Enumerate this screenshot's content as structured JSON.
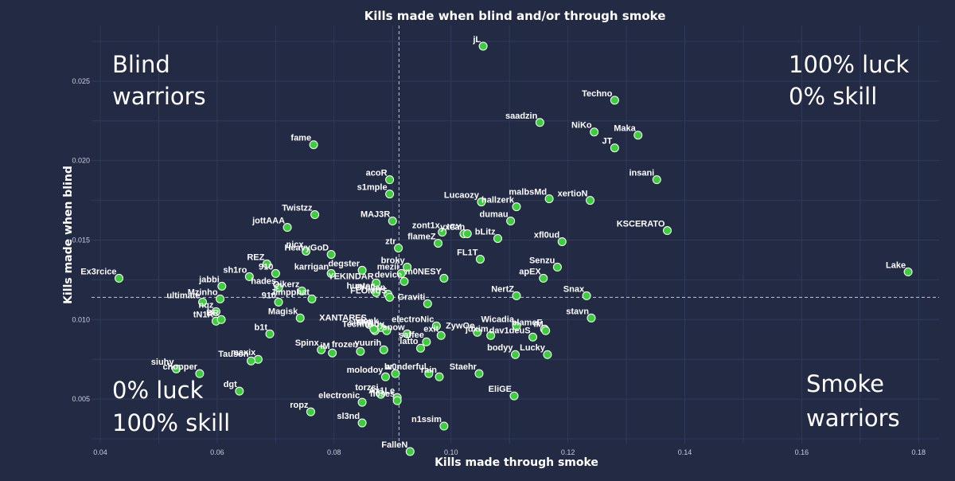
{
  "chart_data": {
    "type": "scatter",
    "title": "Kills made when blind and/or through smoke",
    "xlabel": "Kills made through smoke",
    "ylabel": "Kills made when blind",
    "xlim": [
      0.0385,
      0.1835
    ],
    "ylim": [
      0.0022,
      0.0285
    ],
    "x_ticks": [
      0.04,
      0.06,
      0.08,
      0.1,
      0.12,
      0.14,
      0.16,
      0.18
    ],
    "y_ticks": [
      0.005,
      0.01,
      0.015,
      0.02,
      0.025
    ],
    "x_tick_labels": [
      "0.04",
      "0.06",
      "0.08",
      "0.10",
      "0.12",
      "0.14",
      "0.16",
      "0.18"
    ],
    "y_tick_labels": [
      "0.005",
      "0.010",
      "0.015",
      "0.020",
      "0.025"
    ],
    "grid": true,
    "reference_lines": {
      "x": 0.0911,
      "y": 0.0114
    },
    "quadrant_labels": {
      "top_left": [
        "Blind",
        "warriors"
      ],
      "top_right": [
        "100% luck",
        "0% skill"
      ],
      "bottom_left": [
        "0% luck",
        "100% skill"
      ],
      "bottom_right": [
        "Smoke",
        "warriors"
      ]
    },
    "points": [
      {
        "label": "jL",
        "x": 0.1055,
        "y": 0.0272
      },
      {
        "label": "Techno",
        "x": 0.128,
        "y": 0.0238
      },
      {
        "label": "saadzin",
        "x": 0.1152,
        "y": 0.0224
      },
      {
        "label": "NiKo",
        "x": 0.1245,
        "y": 0.0218
      },
      {
        "label": "Maka",
        "x": 0.132,
        "y": 0.0216
      },
      {
        "label": "JT",
        "x": 0.128,
        "y": 0.0208
      },
      {
        "label": "fame",
        "x": 0.0765,
        "y": 0.021
      },
      {
        "label": "insani",
        "x": 0.1352,
        "y": 0.0188
      },
      {
        "label": "acoR",
        "x": 0.0895,
        "y": 0.0188
      },
      {
        "label": "s1mple",
        "x": 0.0895,
        "y": 0.0179
      },
      {
        "label": "xertioN",
        "x": 0.1238,
        "y": 0.0175
      },
      {
        "label": "malbsMd",
        "x": 0.1168,
        "y": 0.0176
      },
      {
        "label": "Lucaozy",
        "x": 0.1052,
        "y": 0.0174
      },
      {
        "label": "hallzerk",
        "x": 0.1112,
        "y": 0.0171
      },
      {
        "label": "Twistzz",
        "x": 0.0767,
        "y": 0.0166
      },
      {
        "label": "MAJ3R",
        "x": 0.09,
        "y": 0.0162
      },
      {
        "label": "dumau",
        "x": 0.1102,
        "y": 0.0162
      },
      {
        "label": "jottAAA",
        "x": 0.072,
        "y": 0.0158
      },
      {
        "label": "KSCERATO",
        "x": 0.137,
        "y": 0.0156
      },
      {
        "label": "zont1x",
        "x": 0.0985,
        "y": 0.0155
      },
      {
        "label": "ICY",
        "x": 0.1022,
        "y": 0.0154
      },
      {
        "label": "yxean",
        "x": 0.1028,
        "y": 0.0154
      },
      {
        "label": "bLitz",
        "x": 0.108,
        "y": 0.0151
      },
      {
        "label": "xfl0ud",
        "x": 0.119,
        "y": 0.0149
      },
      {
        "label": "flameZ",
        "x": 0.0978,
        "y": 0.0148
      },
      {
        "label": "ztr",
        "x": 0.091,
        "y": 0.0145
      },
      {
        "label": "nicx",
        "x": 0.0752,
        "y": 0.0143
      },
      {
        "label": "HeavyGoD",
        "x": 0.0795,
        "y": 0.0141
      },
      {
        "label": "FL1T",
        "x": 0.105,
        "y": 0.0138
      },
      {
        "label": "REZ",
        "x": 0.0685,
        "y": 0.0135
      },
      {
        "label": "broky",
        "x": 0.0925,
        "y": 0.0133
      },
      {
        "label": "Senzu",
        "x": 0.1182,
        "y": 0.0133
      },
      {
        "label": "degster",
        "x": 0.0848,
        "y": 0.0131
      },
      {
        "label": "mezii",
        "x": 0.0915,
        "y": 0.0129
      },
      {
        "label": "910",
        "x": 0.07,
        "y": 0.0129
      },
      {
        "label": "karrigan",
        "x": 0.0795,
        "y": 0.0129
      },
      {
        "label": "Lake",
        "x": 0.1782,
        "y": 0.013
      },
      {
        "label": "sh1ro",
        "x": 0.0655,
        "y": 0.0127
      },
      {
        "label": "Ex3rcice",
        "x": 0.0432,
        "y": 0.0126
      },
      {
        "label": "m0NESY",
        "x": 0.0988,
        "y": 0.0126
      },
      {
        "label": "apEX",
        "x": 0.1158,
        "y": 0.0126
      },
      {
        "label": "device",
        "x": 0.092,
        "y": 0.0124
      },
      {
        "label": "YEKINDAR",
        "x": 0.0872,
        "y": 0.0123
      },
      {
        "label": "jabbi",
        "x": 0.0608,
        "y": 0.0121
      },
      {
        "label": "hades",
        "x": 0.0705,
        "y": 0.012
      },
      {
        "label": "Qikerz",
        "x": 0.0745,
        "y": 0.0118
      },
      {
        "label": "hunter",
        "x": 0.0872,
        "y": 0.0117
      },
      {
        "label": "Brollan",
        "x": 0.0892,
        "y": 0.0116
      },
      {
        "label": "NertZ",
        "x": 0.1112,
        "y": 0.0115
      },
      {
        "label": "Snax",
        "x": 0.1232,
        "y": 0.0115
      },
      {
        "label": "FLOMUS",
        "x": 0.0895,
        "y": 0.0114
      },
      {
        "label": "Jimpphat",
        "x": 0.0762,
        "y": 0.0113
      },
      {
        "label": "Mzinho",
        "x": 0.0605,
        "y": 0.0113
      },
      {
        "label": "ultimate",
        "x": 0.0575,
        "y": 0.0111
      },
      {
        "label": "910",
        "x": 0.0705,
        "y": 0.0111
      },
      {
        "label": "Graviti",
        "x": 0.096,
        "y": 0.011
      },
      {
        "label": "nqz",
        "x": 0.0598,
        "y": 0.0105
      },
      {
        "label": "Magisk",
        "x": 0.0742,
        "y": 0.0101
      },
      {
        "label": "tN1R",
        "x": 0.0598,
        "y": 0.0099
      },
      {
        "label": "BR",
        "x": 0.0607,
        "y": 0.01
      },
      {
        "label": "stavn",
        "x": 0.124,
        "y": 0.0101
      },
      {
        "label": "XANTARES",
        "x": 0.086,
        "y": 0.0097
      },
      {
        "label": "Wicadia",
        "x": 0.1112,
        "y": 0.0096
      },
      {
        "label": "electroNic",
        "x": 0.0975,
        "y": 0.0096
      },
      {
        "label": "donk",
        "x": 0.088,
        "y": 0.0095
      },
      {
        "label": "b1t",
        "x": 0.069,
        "y": 0.0091
      },
      {
        "label": "Techno",
        "x": 0.087,
        "y": 0.0093
      },
      {
        "label": "siuhy",
        "x": 0.0868,
        "y": 0.0094
      },
      {
        "label": "sdy",
        "x": 0.089,
        "y": 0.0093
      },
      {
        "label": "ZywOo",
        "x": 0.1045,
        "y": 0.0092
      },
      {
        "label": "blameF",
        "x": 0.116,
        "y": 0.0094
      },
      {
        "label": "iM",
        "x": 0.1162,
        "y": 0.0093
      },
      {
        "label": "snow",
        "x": 0.0925,
        "y": 0.0091
      },
      {
        "label": "exit",
        "x": 0.0983,
        "y": 0.009
      },
      {
        "label": "jdxim",
        "x": 0.1068,
        "y": 0.009
      },
      {
        "label": "dav1deuS",
        "x": 0.114,
        "y": 0.0089
      },
      {
        "label": "saffee",
        "x": 0.0958,
        "y": 0.0086
      },
      {
        "label": "latto",
        "x": 0.0948,
        "y": 0.0082
      },
      {
        "label": "Spinx",
        "x": 0.0778,
        "y": 0.0081
      },
      {
        "label": "frozen",
        "x": 0.0845,
        "y": 0.008
      },
      {
        "label": "yuurih",
        "x": 0.0885,
        "y": 0.0081
      },
      {
        "label": "iM",
        "x": 0.0797,
        "y": 0.0079
      },
      {
        "label": "bodyy",
        "x": 0.111,
        "y": 0.0078
      },
      {
        "label": "Lucky",
        "x": 0.1165,
        "y": 0.0078
      },
      {
        "label": "maxix",
        "x": 0.067,
        "y": 0.0075
      },
      {
        "label": "Tauson",
        "x": 0.0658,
        "y": 0.0074
      },
      {
        "label": "siuhy",
        "x": 0.053,
        "y": 0.0069
      },
      {
        "label": "chopper",
        "x": 0.057,
        "y": 0.0066
      },
      {
        "label": "Staehr",
        "x": 0.1048,
        "y": 0.0066
      },
      {
        "label": "rain",
        "x": 0.098,
        "y": 0.0064
      },
      {
        "label": "molodoy",
        "x": 0.0888,
        "y": 0.0064
      },
      {
        "label": "hr",
        "x": 0.0905,
        "y": 0.0066
      },
      {
        "label": "w0nderful",
        "x": 0.0962,
        "y": 0.0066
      },
      {
        "label": "dgt",
        "x": 0.0638,
        "y": 0.0055
      },
      {
        "label": "torzsi",
        "x": 0.088,
        "y": 0.0053
      },
      {
        "label": "Ax1Le",
        "x": 0.0908,
        "y": 0.0051
      },
      {
        "label": "fl0ses",
        "x": 0.0908,
        "y": 0.0049
      },
      {
        "label": "EliGE",
        "x": 0.1108,
        "y": 0.0052
      },
      {
        "label": "electronic",
        "x": 0.0848,
        "y": 0.0048
      },
      {
        "label": "ropz",
        "x": 0.076,
        "y": 0.0042
      },
      {
        "label": "sl3nd",
        "x": 0.0848,
        "y": 0.0035
      },
      {
        "label": "n1ssim",
        "x": 0.0988,
        "y": 0.0033
      },
      {
        "label": "FalleN",
        "x": 0.093,
        "y": 0.0017
      }
    ]
  }
}
